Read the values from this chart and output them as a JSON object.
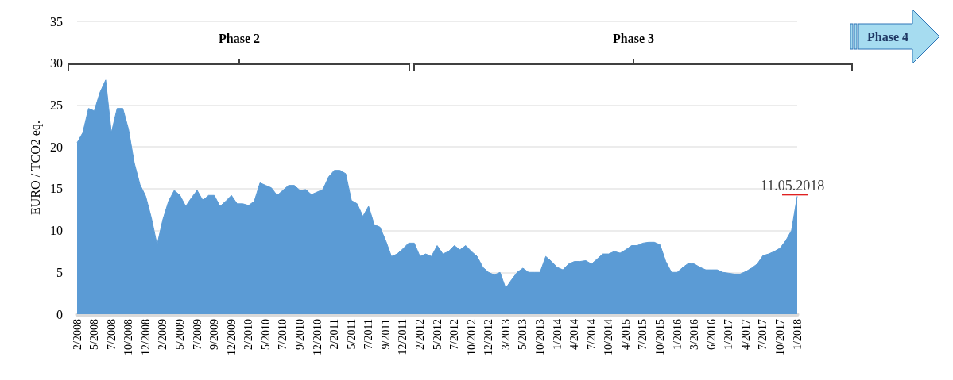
{
  "chart_data": {
    "type": "area",
    "ylabel": "EURO / TCO2 eq.",
    "categories": [
      "2/2008",
      null,
      null,
      "5/2008",
      null,
      null,
      "7/2008",
      null,
      null,
      "10/2008",
      null,
      null,
      "12/2008",
      null,
      null,
      "2/2009",
      null,
      null,
      "5/2009",
      null,
      null,
      "7/2009",
      null,
      null,
      "9/2009",
      null,
      null,
      "12/2009",
      null,
      null,
      "2/2010",
      null,
      null,
      "5/2010",
      null,
      null,
      "7/2010",
      null,
      null,
      "9/2010",
      null,
      null,
      "12/2010",
      null,
      null,
      "2/2011",
      null,
      null,
      "5/2011",
      null,
      null,
      "7/2011",
      null,
      null,
      "9/2011",
      null,
      null,
      "12/2011",
      null,
      null,
      "2/2012",
      null,
      null,
      "5/2012",
      null,
      null,
      "7/2012",
      null,
      null,
      "10/2012",
      null,
      null,
      "12/2012",
      null,
      null,
      "3/2013",
      null,
      null,
      "5/2013",
      null,
      null,
      "10/2013",
      null,
      null,
      "1/2014",
      null,
      null,
      "4/2014",
      null,
      null,
      "7/2014",
      null,
      null,
      "10/2014",
      null,
      null,
      "4/2015",
      null,
      null,
      "7/2015",
      null,
      null,
      "10/2015",
      null,
      null,
      "1/2016",
      null,
      null,
      "3/2016",
      null,
      null,
      "6/2016",
      null,
      null,
      "1/2017",
      null,
      null,
      "4/2017",
      null,
      null,
      "7/2017",
      null,
      null,
      "10/2017",
      null,
      null,
      "1/2018"
    ],
    "series": [
      {
        "color": "#5b9bd5",
        "values": [
          20.5,
          21.7,
          24.6,
          24.3,
          26.5,
          28.0,
          21.7,
          24.6,
          24.6,
          22.1,
          18.1,
          15.5,
          14.1,
          11.5,
          8.3,
          11.3,
          13.5,
          14.8,
          14.2,
          12.9,
          13.9,
          14.8,
          13.6,
          14.2,
          14.2,
          12.9,
          13.5,
          14.2,
          13.2,
          13.2,
          13.0,
          13.5,
          15.7,
          15.4,
          15.1,
          14.2,
          14.8,
          15.4,
          15.4,
          14.8,
          14.9,
          14.3,
          14.6,
          14.9,
          16.4,
          17.2,
          17.2,
          16.8,
          13.6,
          13.2,
          11.7,
          12.9,
          10.7,
          10.4,
          8.8,
          6.9,
          7.2,
          7.8,
          8.5,
          8.5,
          6.9,
          7.2,
          6.9,
          8.2,
          7.2,
          7.5,
          8.2,
          7.7,
          8.2,
          7.5,
          6.9,
          5.6,
          5.0,
          4.7,
          5.0,
          3.1,
          4.1,
          5.0,
          5.5,
          5.0,
          5.0,
          5.0,
          6.9,
          6.3,
          5.6,
          5.3,
          6.0,
          6.3,
          6.3,
          6.4,
          6.0,
          6.6,
          7.2,
          7.2,
          7.5,
          7.3,
          7.7,
          8.2,
          8.2,
          8.5,
          8.6,
          8.6,
          8.3,
          6.3,
          5.0,
          5.0,
          5.6,
          6.1,
          6.0,
          5.6,
          5.3,
          5.3,
          5.3,
          5.0,
          4.9,
          4.8,
          4.8,
          5.1,
          5.5,
          6.0,
          7.0,
          7.2,
          7.5,
          7.9,
          8.8,
          10.0,
          14.1
        ]
      }
    ],
    "ylim": [
      0,
      35
    ],
    "yticks": [
      0,
      5,
      10,
      15,
      20,
      25,
      30,
      35
    ],
    "grid": "y",
    "marker": "none",
    "annotations": [
      "Phase 2",
      "Phase 3",
      "Phase 4",
      {
        "text": "11.05.2018",
        "x": "1/2018",
        "y": 14.1
      }
    ]
  }
}
